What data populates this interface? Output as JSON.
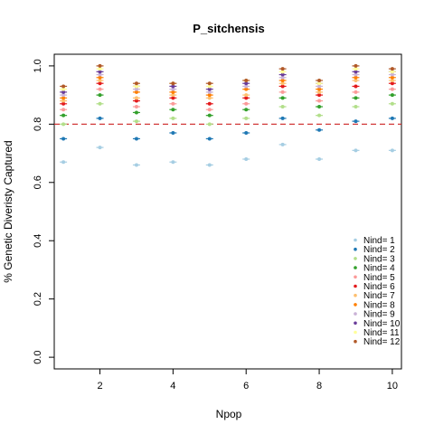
{
  "chart_data": {
    "type": "scatter",
    "title": "P_sitchensis",
    "xlabel": "Npop",
    "ylabel": "% Genetic Diveristy Captured",
    "xlim": [
      0.75,
      10.25
    ],
    "ylim": [
      -0.04,
      1.04
    ],
    "x_ticks": [
      "2",
      "4",
      "6",
      "8",
      "10"
    ],
    "y_ticks": [
      "0.0",
      "0.2",
      "0.4",
      "0.6",
      "0.8",
      "1.0"
    ],
    "reference_line": {
      "y": 0.8,
      "color": "#cc2222",
      "style": "dashed"
    },
    "legend_position": "bottom-right",
    "x": [
      1,
      2,
      3,
      4,
      5,
      6,
      7,
      8,
      9,
      10
    ],
    "series": [
      {
        "name": "Nind= 1",
        "color": "#a6cee3",
        "values": [
          0.67,
          0.72,
          0.66,
          0.67,
          0.66,
          0.68,
          0.73,
          0.68,
          0.71,
          0.71
        ]
      },
      {
        "name": "Nind= 2",
        "color": "#1f78b4",
        "values": [
          0.75,
          0.82,
          0.75,
          0.77,
          0.75,
          0.77,
          0.82,
          0.78,
          0.81,
          0.82
        ]
      },
      {
        "name": "Nind= 3",
        "color": "#b2df8a",
        "values": [
          0.8,
          0.87,
          0.81,
          0.82,
          0.8,
          0.82,
          0.86,
          0.83,
          0.86,
          0.87
        ]
      },
      {
        "name": "Nind= 4",
        "color": "#33a02c",
        "values": [
          0.83,
          0.9,
          0.84,
          0.85,
          0.83,
          0.85,
          0.89,
          0.86,
          0.89,
          0.9
        ]
      },
      {
        "name": "Nind= 5",
        "color": "#fb9a99",
        "values": [
          0.85,
          0.92,
          0.86,
          0.87,
          0.85,
          0.87,
          0.91,
          0.88,
          0.91,
          0.92
        ]
      },
      {
        "name": "Nind= 6",
        "color": "#e31a1c",
        "values": [
          0.87,
          0.94,
          0.88,
          0.89,
          0.87,
          0.89,
          0.93,
          0.9,
          0.93,
          0.94
        ]
      },
      {
        "name": "Nind= 7",
        "color": "#fdbf6f",
        "values": [
          0.88,
          0.95,
          0.89,
          0.9,
          0.89,
          0.9,
          0.94,
          0.91,
          0.95,
          0.95
        ]
      },
      {
        "name": "Nind= 8",
        "color": "#ff7f00",
        "values": [
          0.89,
          0.96,
          0.91,
          0.91,
          0.9,
          0.92,
          0.95,
          0.92,
          0.96,
          0.96
        ]
      },
      {
        "name": "Nind= 9",
        "color": "#cab2d6",
        "values": [
          0.9,
          0.97,
          0.92,
          0.92,
          0.91,
          0.93,
          0.96,
          0.93,
          0.97,
          0.97
        ]
      },
      {
        "name": "Nind= 10",
        "color": "#6a3d9a",
        "values": [
          0.91,
          0.98,
          0.93,
          0.93,
          0.92,
          0.94,
          0.97,
          0.94,
          0.98,
          0.98
        ]
      },
      {
        "name": "Nind= 11",
        "color": "#ffff99",
        "values": [
          0.92,
          0.99,
          0.93,
          0.94,
          0.93,
          0.95,
          0.98,
          0.94,
          0.99,
          0.98
        ]
      },
      {
        "name": "Nind= 12",
        "color": "#b15928",
        "values": [
          0.93,
          1.0,
          0.94,
          0.94,
          0.94,
          0.95,
          0.99,
          0.95,
          1.0,
          0.99
        ]
      }
    ]
  }
}
